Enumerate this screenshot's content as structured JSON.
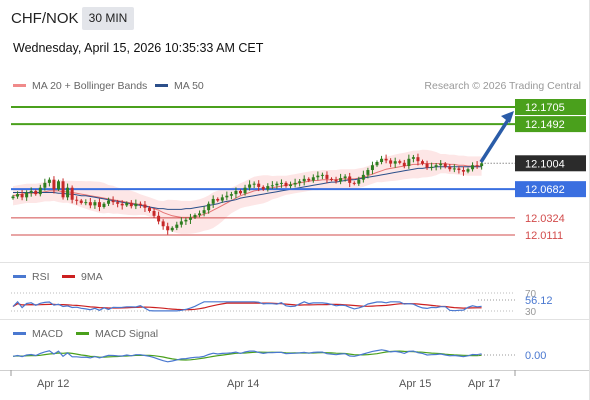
{
  "header": {
    "symbol": "CHF/NOK",
    "timeframe": "30 MIN",
    "datetime": "Wednesday, April 15, 2026 10:35:33 AM CET"
  },
  "legend": {
    "ma20_bb": "MA 20 + Bollinger Bands",
    "ma50": "MA 50",
    "credit": "Research © 2026 Trading Central"
  },
  "colors": {
    "resistance": "#4aa01c",
    "pivot": "#3a6fe0",
    "support": "#d24b4b",
    "current": "#2b2b2b",
    "arrow": "#2a5ca8",
    "candle_up": "#2e7d1f",
    "candle_down": "#c62828",
    "ma20": "#e57373",
    "ma50": "#2c4f8a",
    "bb_fill": "#fde6e6",
    "rsi": "#4a78d0",
    "rsi_ma": "#cc2020",
    "macd": "#4a78d0",
    "macd_signal": "#4aa01c"
  },
  "levels": [
    {
      "value": "12.1705",
      "type": "resistance"
    },
    {
      "value": "12.1492",
      "type": "resistance"
    },
    {
      "value": "12.1004",
      "type": "current"
    },
    {
      "value": "12.0682",
      "type": "pivot"
    },
    {
      "value": "12.0324",
      "type": "support"
    },
    {
      "value": "12.0111",
      "type": "support"
    }
  ],
  "rsi_panel": {
    "label": "RSI",
    "ma_label": "9MA",
    "levels": [
      "70",
      "30"
    ],
    "value": "56.12"
  },
  "macd_panel": {
    "label": "MACD",
    "signal_label": "MACD Signal",
    "value": "0.00"
  },
  "x_axis": {
    "labels": [
      "Apr 12",
      "Apr 14",
      "Apr 15",
      "Apr 17"
    ]
  },
  "chart_data": {
    "type": "candlestick",
    "ylim": [
      11.9937,
      12.1856
    ],
    "closes": [
      12.059,
      12.062,
      12.058,
      12.064,
      12.066,
      12.062,
      12.07,
      12.076,
      12.08,
      12.068,
      12.078,
      12.058,
      12.07,
      12.055,
      12.054,
      12.051,
      12.052,
      12.048,
      12.052,
      12.046,
      12.05,
      12.054,
      12.052,
      12.05,
      12.048,
      12.051,
      12.047,
      12.05,
      12.049,
      12.045,
      12.041,
      12.035,
      12.028,
      12.022,
      12.017,
      12.02,
      12.024,
      12.028,
      12.03,
      12.033,
      12.036,
      12.038,
      12.042,
      12.05,
      12.056,
      12.054,
      12.058,
      12.06,
      12.062,
      12.066,
      12.063,
      12.07,
      12.074,
      12.075,
      12.071,
      12.068,
      12.072,
      12.073,
      12.075,
      12.076,
      12.072,
      12.074,
      12.076,
      12.078,
      12.081,
      12.079,
      12.083,
      12.085,
      12.086,
      12.081,
      12.08,
      12.078,
      12.082,
      12.084,
      12.076,
      12.075,
      12.08,
      12.086,
      12.092,
      12.098,
      12.102,
      12.106,
      12.104,
      12.1,
      12.103,
      12.101,
      12.097,
      12.106,
      12.108,
      12.103,
      12.1,
      12.095,
      12.096,
      12.098,
      12.1,
      12.096,
      12.093,
      12.094,
      12.092,
      12.09,
      12.093,
      12.098,
      12.097,
      12.1004
    ],
    "ma20": [
      12.06,
      12.061,
      12.062,
      12.063,
      12.063,
      12.063,
      12.064,
      12.065,
      12.066,
      12.066,
      12.066,
      12.065,
      12.065,
      12.064,
      12.063,
      12.062,
      12.061,
      12.06,
      12.059,
      12.058,
      12.057,
      12.056,
      12.055,
      12.054,
      12.053,
      12.052,
      12.051,
      12.05,
      12.049,
      12.048,
      12.046,
      12.044,
      12.042,
      12.039,
      12.037,
      12.035,
      12.034,
      12.033,
      12.033,
      12.033,
      12.034,
      12.035,
      12.037,
      12.039,
      12.042,
      12.045,
      12.048,
      12.051,
      12.054,
      12.057,
      12.06,
      12.062,
      12.064,
      12.066,
      12.067,
      12.068,
      12.069,
      12.07,
      12.071,
      12.072,
      12.073,
      12.074,
      12.075,
      12.076,
      12.077,
      12.078,
      12.079,
      12.079,
      12.08,
      12.08,
      12.08,
      12.08,
      12.081,
      12.081,
      12.081,
      12.081,
      12.082,
      12.083,
      12.085,
      12.087,
      12.089,
      12.091,
      12.093,
      12.094,
      12.095,
      12.096,
      12.097,
      12.098,
      12.099,
      12.099,
      12.1,
      12.1,
      12.1,
      12.1,
      12.1,
      12.1,
      12.099,
      12.099,
      12.098,
      12.098,
      12.097,
      12.097,
      12.097,
      12.097
    ],
    "ma50": [
      12.064,
      12.064,
      12.064,
      12.064,
      12.064,
      12.064,
      12.064,
      12.064,
      12.064,
      12.064,
      12.063,
      12.063,
      12.062,
      12.062,
      12.061,
      12.06,
      12.06,
      12.059,
      12.058,
      12.057,
      12.056,
      12.055,
      12.054,
      12.053,
      12.052,
      12.051,
      12.05,
      12.049,
      12.048,
      12.047,
      12.046,
      12.045,
      12.044,
      12.044,
      12.043,
      12.043,
      12.043,
      12.043,
      12.044,
      12.044,
      12.045,
      12.046,
      12.047,
      12.048,
      12.049,
      12.05,
      12.052,
      12.053,
      12.054,
      12.055,
      12.057,
      12.058,
      12.059,
      12.06,
      12.061,
      12.062,
      12.063,
      12.064,
      12.065,
      12.066,
      12.067,
      12.068,
      12.069,
      12.07,
      12.071,
      12.072,
      12.073,
      12.074,
      12.075,
      12.076,
      12.077,
      12.077,
      12.078,
      12.079,
      12.08,
      12.08,
      12.081,
      12.082,
      12.083,
      12.084,
      12.085,
      12.086,
      12.087,
      12.088,
      12.089,
      12.09,
      12.091,
      12.092,
      12.093,
      12.094,
      12.094,
      12.095,
      12.095,
      12.096,
      12.096,
      12.096,
      12.096,
      12.096,
      12.096,
      12.096,
      12.096,
      12.096,
      12.096,
      12.096
    ]
  }
}
